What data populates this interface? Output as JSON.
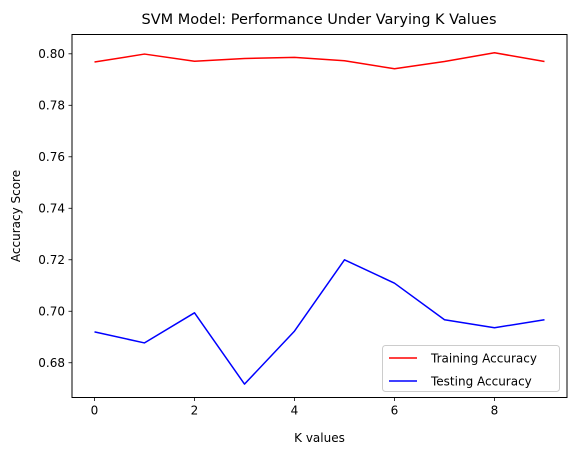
{
  "chart_data": {
    "type": "line",
    "title": "SVM Model: Performance Under Varying K Values",
    "xlabel": "K values",
    "ylabel": "Accuracy Score",
    "x": [
      0,
      1,
      2,
      3,
      4,
      5,
      6,
      7,
      8,
      9
    ],
    "xlim": [
      -0.45,
      9.45
    ],
    "ylim": [
      0.6665,
      0.8075
    ],
    "xticks": [
      0,
      2,
      4,
      6,
      8
    ],
    "yticks": [
      0.68,
      0.7,
      0.72,
      0.74,
      0.76,
      0.78,
      0.8
    ],
    "ytick_labels": [
      "0.68",
      "0.70",
      "0.72",
      "0.74",
      "0.76",
      "0.78",
      "0.80"
    ],
    "grid": false,
    "legend_position": "lower-right",
    "series": [
      {
        "name": "Training Accuracy",
        "color": "#ff0000",
        "values": [
          0.7968,
          0.7999,
          0.7971,
          0.7982,
          0.7986,
          0.7973,
          0.7942,
          0.797,
          0.8004,
          0.797
        ]
      },
      {
        "name": "Testing Accuracy",
        "color": "#0000ff",
        "values": [
          0.692,
          0.6877,
          0.6994,
          0.6717,
          0.6923,
          0.72,
          0.7109,
          0.6967,
          0.6936,
          0.6967
        ]
      }
    ]
  }
}
